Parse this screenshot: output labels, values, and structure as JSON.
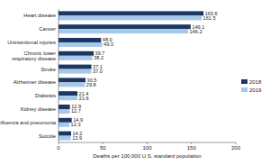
{
  "chart_data": {
    "type": "bar",
    "orientation": "horizontal",
    "x_label": "Deaths per 100,000 U.S. standard population",
    "categories": [
      "Heart disease",
      "Cancer",
      "Unintentional injuries",
      "Chronic lower\nrespiratory disease",
      "Stroke",
      "Alzheimer disease",
      "Diabetes",
      "Kidney disease",
      "Influenza and pneumonia",
      "Suicide"
    ],
    "series": [
      {
        "name": "2018",
        "color": "#1c3764",
        "values": [
          163.6,
          149.1,
          48.0,
          39.7,
          37.1,
          30.5,
          21.4,
          12.9,
          14.9,
          14.2
        ],
        "value_labels": [
          "163.6",
          "149.1",
          "48.0",
          "39.7",
          "37.1",
          "30.5",
          "21.4",
          "12.9",
          "14.9",
          "14.2"
        ]
      },
      {
        "name": "2019",
        "color": "#a8c8ea",
        "values": [
          161.5,
          146.2,
          49.3,
          38.2,
          37.0,
          29.8,
          21.6,
          12.7,
          12.3,
          13.9
        ],
        "value_labels": [
          "161.5",
          "146.2",
          "49.3",
          "38.2",
          "37.0",
          "29.8",
          "21.6",
          "12.7",
          "12.3",
          "13.9"
        ]
      }
    ],
    "xlim": [
      0,
      200
    ],
    "xticks": [
      0,
      50,
      100,
      150,
      200
    ],
    "grid": false,
    "legend": "right",
    "data_labels": true
  }
}
